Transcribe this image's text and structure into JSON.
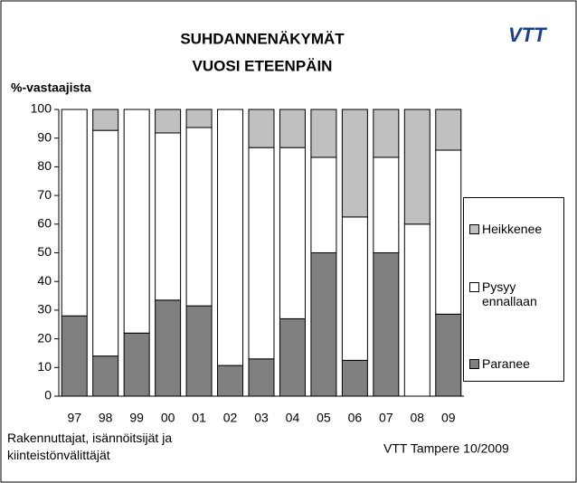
{
  "chart_data": {
    "type": "stacked_bar",
    "title": [
      "SUHDANNENÄKYMÄT",
      "VUOSI ETEENPÄIN"
    ],
    "logo": "VTT",
    "y_label": "%-vastaajista",
    "categories": [
      "97",
      "98",
      "99",
      "00",
      "01",
      "02",
      "03",
      "04",
      "05",
      "06",
      "07",
      "08",
      "09"
    ],
    "series": [
      {
        "name": "Paranee",
        "color": "#808080",
        "values": [
          28,
          14,
          22,
          33.5,
          31.5,
          10.7,
          13,
          27,
          50,
          12.5,
          50,
          0,
          28.6
        ]
      },
      {
        "name": "Pysyy ennallaan",
        "color": "#ffffff",
        "values": [
          72,
          78.7,
          78,
          58.3,
          62.2,
          89.3,
          73.7,
          59.7,
          33.3,
          50,
          33.3,
          60,
          57.2
        ]
      },
      {
        "name": "Heikkenee",
        "color": "#c0c0c0",
        "values": [
          0,
          7.3,
          0,
          8.2,
          6.3,
          0,
          13.3,
          13.3,
          16.7,
          37.5,
          16.7,
          40,
          14.2
        ]
      }
    ],
    "ylim": [
      0,
      100
    ],
    "yticks": [
      0,
      10,
      20,
      30,
      40,
      50,
      60,
      70,
      80,
      90,
      100
    ],
    "grid": false,
    "legend": "right",
    "notes": [
      "Rakennuttajat, isännöitsijät ja",
      "kiinteistönvälittäjät"
    ],
    "source": "VTT Tampere 10/2009"
  }
}
